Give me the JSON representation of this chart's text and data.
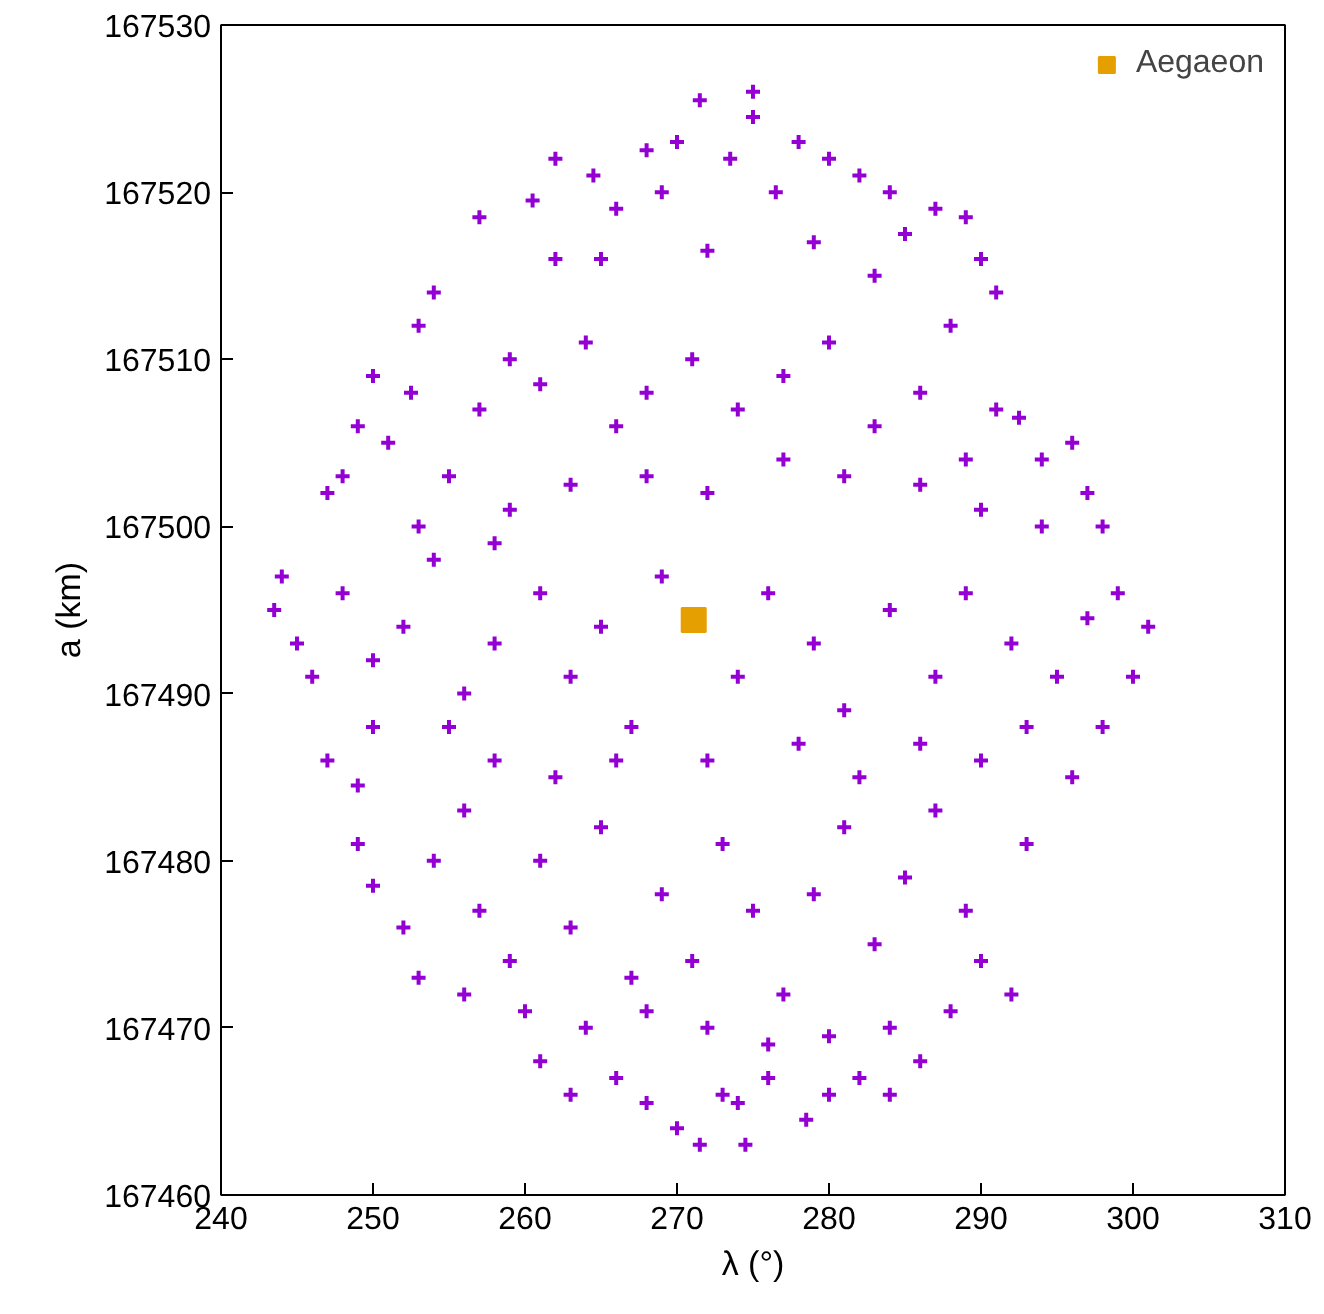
{
  "chart_data": {
    "type": "scatter",
    "xlabel": "λ (°)",
    "ylabel": "a (km)",
    "xlim": [
      240,
      310
    ],
    "xticks": [
      240,
      250,
      260,
      270,
      280,
      290,
      300,
      310
    ],
    "ylim": [
      167460,
      167530
    ],
    "yticks": [
      167460,
      167470,
      167480,
      167490,
      167500,
      167510,
      167520,
      167530
    ],
    "grid": false,
    "legend": "top right",
    "series": [
      {
        "color": "#9400d3",
        "marker": "cross",
        "x": [
          275,
          275,
          271.5,
          270,
          268,
          273.5,
          278,
          280,
          282,
          284,
          287,
          289,
          264.5,
          262,
          260.5,
          257,
          266,
          269,
          276.5,
          279,
          285,
          290,
          291,
          283,
          262,
          265,
          272,
          254,
          253,
          252.5,
          250,
          249,
          248,
          247,
          251,
          257,
          259,
          261,
          264,
          266,
          268,
          271,
          274,
          277,
          280,
          283,
          286,
          288,
          291,
          292.5,
          289,
          294,
          296,
          297,
          298,
          294,
          290,
          286,
          281,
          277,
          272,
          268,
          263,
          259,
          255,
          253,
          258,
          244,
          243.5,
          245,
          246,
          248,
          250,
          252,
          254,
          256,
          258,
          261,
          263,
          265,
          267,
          269,
          274,
          276,
          279,
          281,
          284,
          287,
          289,
          292,
          295,
          297,
          299,
          301,
          300,
          298,
          296,
          293,
          290,
          286,
          282,
          278,
          272,
          266,
          262,
          258,
          255,
          250,
          247,
          249,
          249,
          250,
          252,
          254,
          256,
          257,
          259,
          261,
          263,
          265,
          267,
          269,
          271,
          273,
          275,
          277,
          279,
          281,
          283,
          285,
          287,
          289,
          290,
          293,
          292,
          288,
          284,
          280,
          276,
          272,
          268,
          264,
          260,
          256,
          253,
          261,
          263,
          266,
          268,
          270,
          271.5,
          273,
          274,
          276,
          278.5,
          280,
          282,
          284,
          286,
          274.5
        ],
        "values": [
          167526,
          167524.5,
          167525.5,
          167523,
          167522.5,
          167522,
          167523,
          167522,
          167521,
          167520,
          167519,
          167518.5,
          167521,
          167522,
          167519.5,
          167518.5,
          167519,
          167520,
          167520,
          167517,
          167517.5,
          167516,
          167514,
          167515,
          167516,
          167516,
          167516.5,
          167514,
          167512,
          167508,
          167509,
          167506,
          167503,
          167502,
          167505,
          167507,
          167510,
          167508.5,
          167511,
          167506,
          167508,
          167510,
          167507,
          167509,
          167511,
          167506,
          167508,
          167512,
          167507,
          167506.5,
          167504,
          167504,
          167505,
          167502,
          167500,
          167500,
          167501,
          167502.5,
          167503,
          167504,
          167502,
          167503,
          167502.5,
          167501,
          167503,
          167500,
          167499,
          167497,
          167495,
          167493,
          167491,
          167496,
          167492,
          167494,
          167498,
          167490,
          167493,
          167496,
          167491,
          167494,
          167488,
          167497,
          167491,
          167496,
          167493,
          167489,
          167495,
          167491,
          167496,
          167493,
          167491,
          167494.5,
          167496,
          167494,
          167491,
          167488,
          167485,
          167488,
          167486,
          167487,
          167485,
          167487,
          167486,
          167486,
          167485,
          167486,
          167488,
          167488,
          167486,
          167484.5,
          167481,
          167478.5,
          167476,
          167480,
          167483,
          167477,
          167474,
          167480,
          167476,
          167482,
          167473,
          167478,
          167474,
          167481,
          167477,
          167472,
          167478,
          167482,
          167475,
          167479,
          167483,
          167477,
          167474,
          167481,
          167472,
          167471,
          167470,
          167469.5,
          167469,
          167470,
          167471,
          167470,
          167471,
          167472,
          167473,
          167468,
          167466,
          167467,
          167465.5,
          167464,
          167463,
          167466,
          167465.5,
          167467,
          167464.5,
          167466,
          167467,
          167466,
          167468,
          167463
        ]
      },
      {
        "name": "Aegaeon",
        "color": "#e69f00",
        "marker": "square",
        "x": [
          271.1
        ],
        "values": [
          167494.4
        ]
      }
    ]
  }
}
